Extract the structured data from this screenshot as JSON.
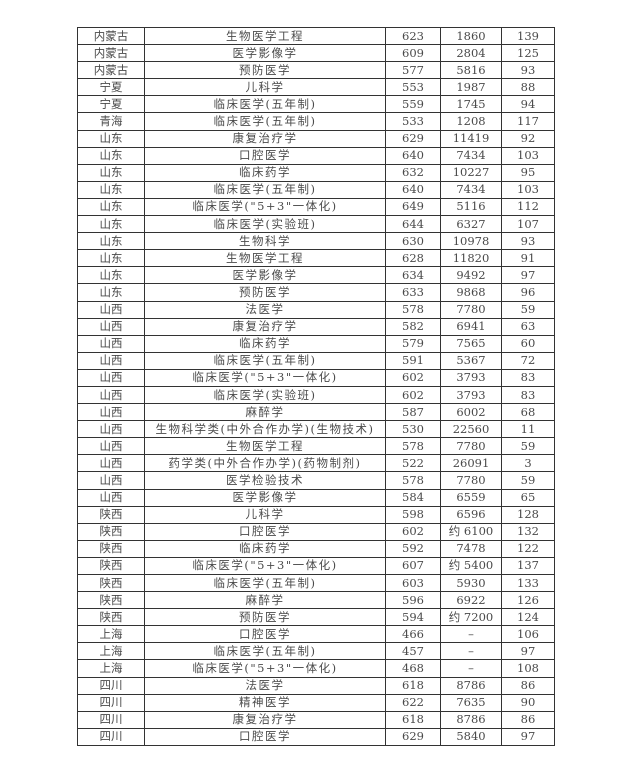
{
  "rows": [
    [
      "内蒙古",
      "生物医学工程",
      "623",
      "1860",
      "139"
    ],
    [
      "内蒙古",
      "医学影像学",
      "609",
      "2804",
      "125"
    ],
    [
      "内蒙古",
      "预防医学",
      "577",
      "5816",
      "93"
    ],
    [
      "宁夏",
      "儿科学",
      "553",
      "1987",
      "88"
    ],
    [
      "宁夏",
      "临床医学(五年制)",
      "559",
      "1745",
      "94"
    ],
    [
      "青海",
      "临床医学(五年制)",
      "533",
      "1208",
      "117"
    ],
    [
      "山东",
      "康复治疗学",
      "629",
      "11419",
      "92"
    ],
    [
      "山东",
      "口腔医学",
      "640",
      "7434",
      "103"
    ],
    [
      "山东",
      "临床药学",
      "632",
      "10227",
      "95"
    ],
    [
      "山东",
      "临床医学(五年制)",
      "640",
      "7434",
      "103"
    ],
    [
      "山东",
      "临床医学(\"5+3\"一体化)",
      "649",
      "5116",
      "112"
    ],
    [
      "山东",
      "临床医学(实验班)",
      "644",
      "6327",
      "107"
    ],
    [
      "山东",
      "生物科学",
      "630",
      "10978",
      "93"
    ],
    [
      "山东",
      "生物医学工程",
      "628",
      "11820",
      "91"
    ],
    [
      "山东",
      "医学影像学",
      "634",
      "9492",
      "97"
    ],
    [
      "山东",
      "预防医学",
      "633",
      "9868",
      "96"
    ],
    [
      "山西",
      "法医学",
      "578",
      "7780",
      "59"
    ],
    [
      "山西",
      "康复治疗学",
      "582",
      "6941",
      "63"
    ],
    [
      "山西",
      "临床药学",
      "579",
      "7565",
      "60"
    ],
    [
      "山西",
      "临床医学(五年制)",
      "591",
      "5367",
      "72"
    ],
    [
      "山西",
      "临床医学(\"5+3\"一体化)",
      "602",
      "3793",
      "83"
    ],
    [
      "山西",
      "临床医学(实验班)",
      "602",
      "3793",
      "83"
    ],
    [
      "山西",
      "麻醉学",
      "587",
      "6002",
      "68"
    ],
    [
      "山西",
      "生物科学类(中外合作办学)(生物技术)",
      "530",
      "22560",
      "11"
    ],
    [
      "山西",
      "生物医学工程",
      "578",
      "7780",
      "59"
    ],
    [
      "山西",
      "药学类(中外合作办学)(药物制剂)",
      "522",
      "26091",
      "3"
    ],
    [
      "山西",
      "医学检验技术",
      "578",
      "7780",
      "59"
    ],
    [
      "山西",
      "医学影像学",
      "584",
      "6559",
      "65"
    ],
    [
      "陕西",
      "儿科学",
      "598",
      "6596",
      "128"
    ],
    [
      "陕西",
      "口腔医学",
      "602",
      "约 6100",
      "132"
    ],
    [
      "陕西",
      "临床药学",
      "592",
      "7478",
      "122"
    ],
    [
      "陕西",
      "临床医学(\"5+3\"一体化)",
      "607",
      "约 5400",
      "137"
    ],
    [
      "陕西",
      "临床医学(五年制)",
      "603",
      "5930",
      "133"
    ],
    [
      "陕西",
      "麻醉学",
      "596",
      "6922",
      "126"
    ],
    [
      "陕西",
      "预防医学",
      "594",
      "约 7200",
      "124"
    ],
    [
      "上海",
      "口腔医学",
      "466",
      "–",
      "106"
    ],
    [
      "上海",
      "临床医学(五年制)",
      "457",
      "–",
      "97"
    ],
    [
      "上海",
      "临床医学(\"5+3\"一体化)",
      "468",
      "–",
      "108"
    ],
    [
      "四川",
      "法医学",
      "618",
      "8786",
      "86"
    ],
    [
      "四川",
      "精神医学",
      "622",
      "7635",
      "90"
    ],
    [
      "四川",
      "康复治疗学",
      "618",
      "8786",
      "86"
    ],
    [
      "四川",
      "口腔医学",
      "629",
      "5840",
      "97"
    ]
  ]
}
